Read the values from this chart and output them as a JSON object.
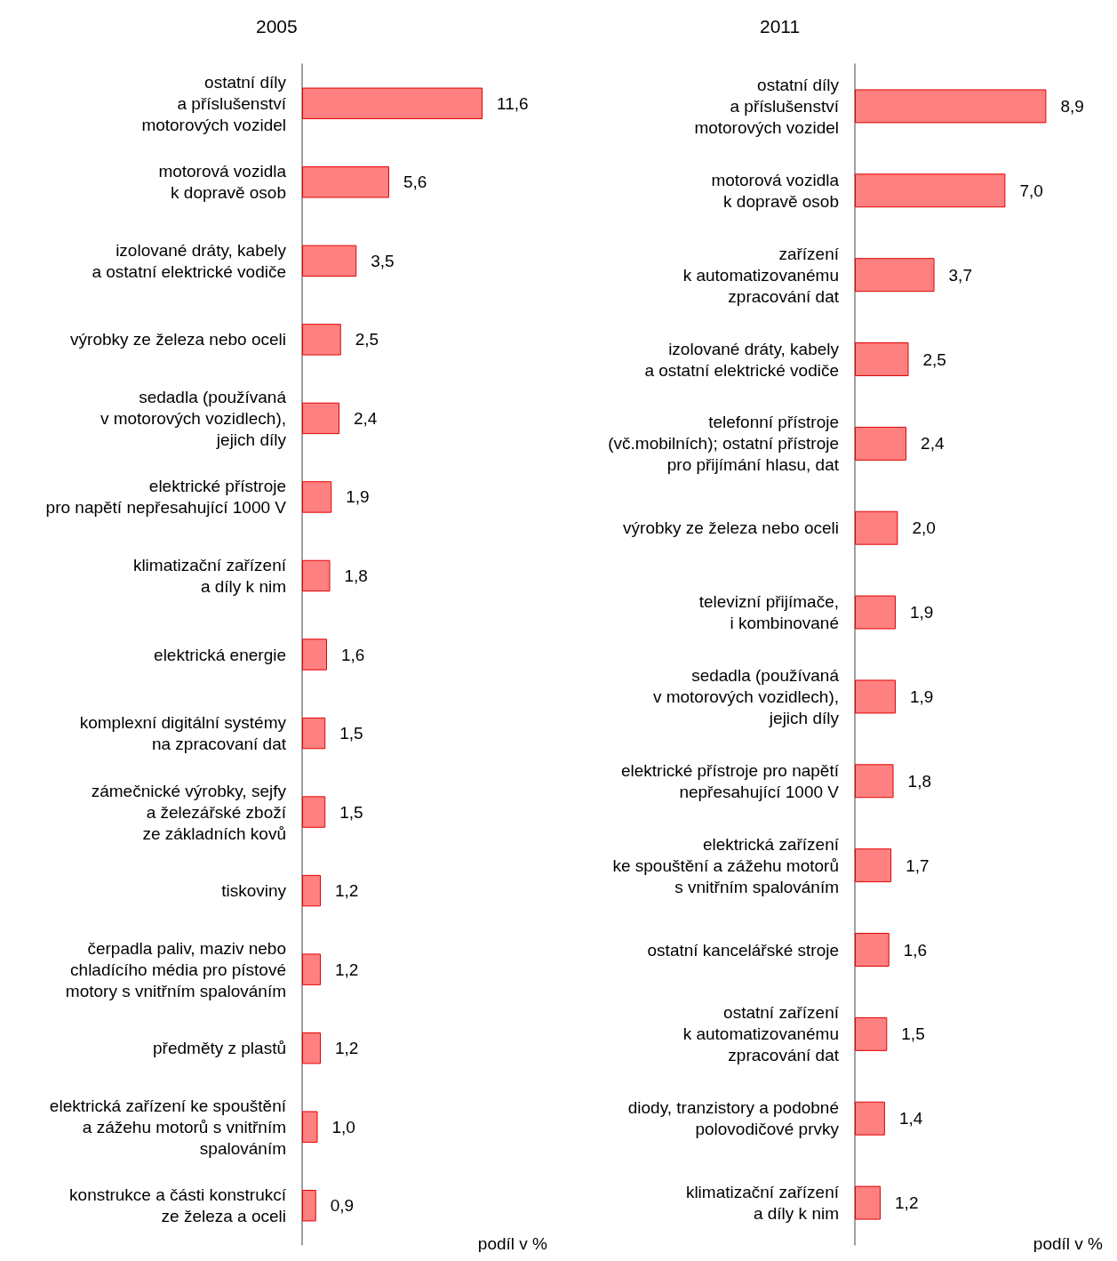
{
  "chart_data": [
    {
      "type": "bar",
      "orientation": "horizontal",
      "title": "2005",
      "xlabel": "podíl v %",
      "color": "#ff8080",
      "categories": [
        "ostatní díly\na příslušenství\nmotorových vozidel",
        "motorová vozidla\nk dopravě osob",
        "izolované dráty, kabely\na ostatní elektrické vodiče",
        "výrobky ze železa nebo oceli",
        "sedadla (používaná\nv motorových vozidlech),\njejich díly",
        "elektrické přístroje\npro napětí nepřesahující 1000 V",
        "klimatizační zařízení\na díly k nim",
        "elektrická energie",
        "komplexní digitální systémy\nna zpracovaní dat",
        "zámečnické výrobky, sejfy\na železářské zboží\nze základních kovů",
        "tiskoviny",
        "čerpadla paliv, maziv nebo\nchladícího média pro pístové\nmotory s vnitřním spalováním",
        "předměty z plastů",
        "elektrická zařízení ke spouštění\na zážehu motorů s vnitřním\nspalováním",
        "konstrukce a části konstrukcí\nze železa a oceli"
      ],
      "values": [
        11.6,
        5.6,
        3.5,
        2.5,
        2.4,
        1.9,
        1.8,
        1.6,
        1.5,
        1.5,
        1.2,
        1.2,
        1.2,
        1.0,
        0.9
      ],
      "value_labels": [
        "11,6",
        "5,6",
        "3,5",
        "2,5",
        "2,4",
        "1,9",
        "1,8",
        "1,6",
        "1,5",
        "1,5",
        "1,2",
        "1,2",
        "1,2",
        "1,0",
        "0,9"
      ]
    },
    {
      "type": "bar",
      "orientation": "horizontal",
      "title": "2011",
      "xlabel": "podíl v %",
      "color": "#ff8080",
      "categories": [
        "ostatní díly\na příslušenství\nmotorových vozidel",
        "motorová vozidla\nk dopravě osob",
        "zařízení\nk automatizovanému\nzpracování dat",
        "izolované dráty, kabely\na ostatní elektrické vodiče",
        "telefonní přístroje\n(vč.mobilních); ostatní přístroje\npro přijímání hlasu, dat",
        "výrobky ze železa nebo oceli",
        "televizní přijímače,\ni kombinované",
        "sedadla (používaná\nv motorových vozidlech),\njejich díly",
        "elektrické přístroje pro napětí\nnepřesahující 1000 V",
        "elektrická zařízení\nke spouštění a zážehu motorů\ns vnitřním spalováním",
        "ostatní kancelářské stroje",
        "ostatní zařízení\nk automatizovanému\nzpracování dat",
        "diody, tranzistory a podobné\npolovodičové prvky",
        "klimatizační zařízení\na díly k nim"
      ],
      "values": [
        8.9,
        7.0,
        3.7,
        2.5,
        2.4,
        2.0,
        1.9,
        1.9,
        1.8,
        1.7,
        1.6,
        1.5,
        1.4,
        1.2
      ],
      "value_labels": [
        "8,9",
        "7,0",
        "3,7",
        "2,5",
        "2,4",
        "2,0",
        "1,9",
        "1,9",
        "1,8",
        "1,7",
        "1,6",
        "1,5",
        "1,4",
        "1,2"
      ]
    }
  ]
}
